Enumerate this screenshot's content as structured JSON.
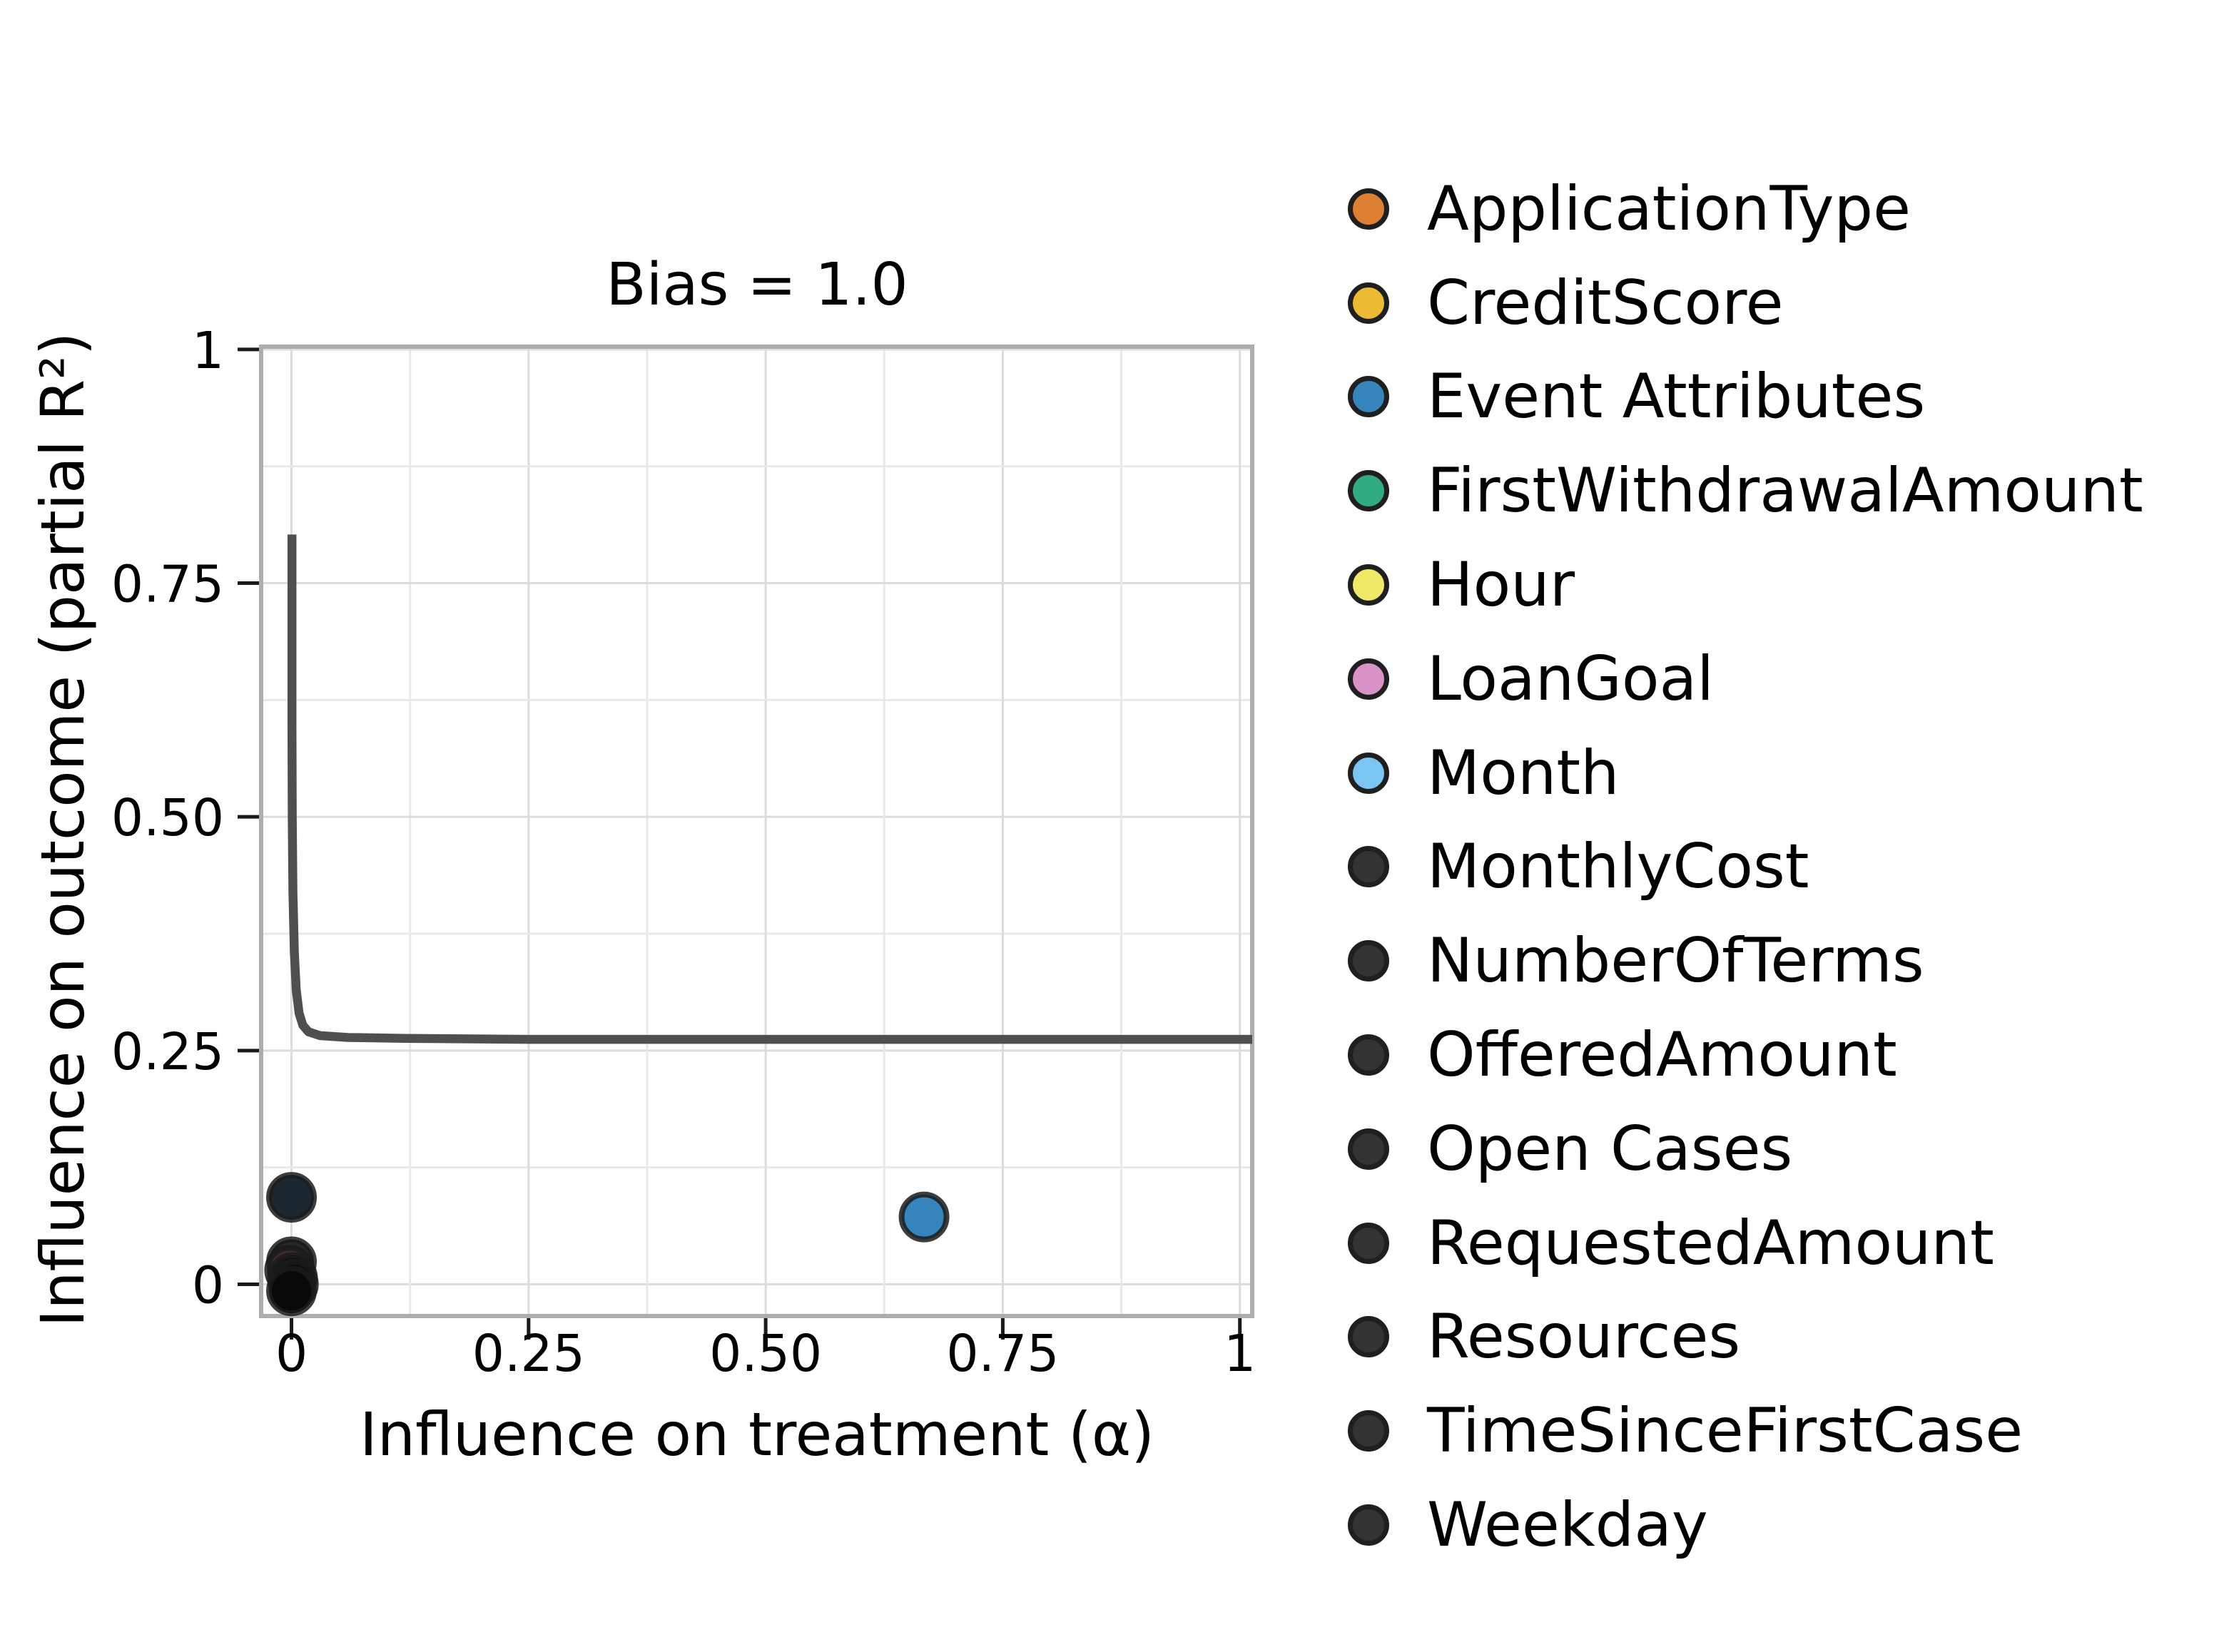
{
  "figure": {
    "background": "#ffffff"
  },
  "chart_data": {
    "type": "scatter",
    "title": "Bias = 1.0",
    "xlabel": "Influence on treatment (α)",
    "ylabel": "Influence on outcome (partial R²)",
    "xlim": [
      -0.032,
      1.013
    ],
    "ylim": [
      -0.034,
      1.003
    ],
    "xticks": {
      "values": [
        0,
        0.25,
        0.5,
        0.75,
        1
      ],
      "labels": [
        "0",
        "0.25",
        "0.50",
        "0.75",
        "1"
      ]
    },
    "yticks": {
      "values": [
        0,
        0.25,
        0.5,
        0.75,
        1
      ],
      "labels": [
        "0",
        "0.25",
        "0.50",
        "0.75",
        "1"
      ]
    },
    "grid": {
      "visible": true,
      "step": 0.125,
      "major_color": "#dcdcdc",
      "minor_color": "#e9e9e9"
    },
    "spine_color": "#adadad",
    "legend_position": "right",
    "frontier_curve": {
      "name": "bias-frontier",
      "description": "curve of (α, partial R²) pairs with bias = 1.0; vertical at α≈0 from 0.80, horizontal asymptote at R²≈0.26",
      "color": "#4f4f4f",
      "points": [
        [
          0.0005,
          0.802
        ],
        [
          0.0005,
          0.6
        ],
        [
          0.0008,
          0.5
        ],
        [
          0.0015,
          0.42
        ],
        [
          0.003,
          0.355
        ],
        [
          0.005,
          0.315
        ],
        [
          0.008,
          0.29
        ],
        [
          0.012,
          0.277
        ],
        [
          0.018,
          0.27
        ],
        [
          0.03,
          0.266
        ],
        [
          0.06,
          0.264
        ],
        [
          0.12,
          0.263
        ],
        [
          0.25,
          0.262
        ],
        [
          0.5,
          0.262
        ],
        [
          0.75,
          0.262
        ],
        [
          1.013,
          0.262
        ]
      ]
    },
    "points": [
      {
        "series": "dark-feature-cluster",
        "x": 0.0,
        "y": 0.093,
        "color": "#1c2831"
      },
      {
        "series": "dark-feature-cluster",
        "x": 0.0,
        "y": 0.024,
        "color": "#2a2527"
      },
      {
        "series": "dark-feature-cluster",
        "x": -0.002,
        "y": 0.015,
        "color": "#3f2838"
      },
      {
        "series": "dark-feature-cluster",
        "x": 0.001,
        "y": 0.007,
        "color": "#0e0e0e"
      },
      {
        "series": "dark-feature-cluster",
        "x": 0.002,
        "y": 0.0,
        "color": "#090909"
      },
      {
        "series": "dark-feature-cluster",
        "x": 0.0,
        "y": -0.007,
        "color": "#090909"
      },
      {
        "series": "Event Attributes",
        "x": 0.667,
        "y": 0.072,
        "color": "#3585bc"
      }
    ],
    "marker": {
      "radius": 31.5,
      "edge_color": "#1b1b1b",
      "edge_width": 8,
      "edge_opacity": 0.85
    },
    "legend": [
      {
        "label": "ApplicationType",
        "color": "#de8033"
      },
      {
        "label": "CreditScore",
        "color": "#ecbb33"
      },
      {
        "label": "Event Attributes",
        "color": "#3585bc"
      },
      {
        "label": "FirstWithdrawalAmount",
        "color": "#31ab81"
      },
      {
        "label": "Hour",
        "color": "#f0e968"
      },
      {
        "label": "LoanGoal",
        "color": "#d892c6"
      },
      {
        "label": "Month",
        "color": "#7ac5f2"
      },
      {
        "label": "MonthlyCost",
        "color": "#333333"
      },
      {
        "label": "NumberOfTerms",
        "color": "#333333"
      },
      {
        "label": "OfferedAmount",
        "color": "#333333"
      },
      {
        "label": "Open Cases",
        "color": "#333333"
      },
      {
        "label": "RequestedAmount",
        "color": "#333333"
      },
      {
        "label": "Resources",
        "color": "#333333"
      },
      {
        "label": "TimeSinceFirstCase",
        "color": "#333333"
      },
      {
        "label": "Weekday",
        "color": "#333333"
      }
    ]
  }
}
